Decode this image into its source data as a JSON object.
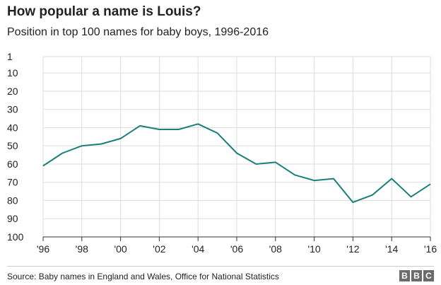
{
  "header": {
    "title": "How popular a name is Louis?",
    "subtitle": "Position in top 100 names for baby boys, 1996-2016"
  },
  "footer": {
    "source": "Source: Baby names in England and Wales, Office for National Statistics",
    "logo_letters": [
      "B",
      "B",
      "C"
    ]
  },
  "colors": {
    "line": "#1a7f7a",
    "grid": "#dddddd",
    "axis": "#333333"
  },
  "chart_data": {
    "type": "line",
    "title": "How popular a name is Louis?",
    "subtitle": "Position in top 100 names for baby boys, 1996-2016",
    "xlabel": "",
    "ylabel": "",
    "x": [
      1996,
      1997,
      1998,
      1999,
      2000,
      2001,
      2002,
      2003,
      2004,
      2005,
      2006,
      2007,
      2008,
      2009,
      2010,
      2011,
      2012,
      2013,
      2014,
      2015,
      2016
    ],
    "y": [
      61,
      54,
      50,
      49,
      46,
      39,
      41,
      41,
      38,
      43,
      54,
      60,
      59,
      66,
      69,
      68,
      81,
      77,
      68,
      78,
      71
    ],
    "xlim": [
      1996,
      2016
    ],
    "ylim": [
      1,
      100
    ],
    "y_reversed": true,
    "x_ticks": [
      1996,
      1998,
      2000,
      2002,
      2004,
      2006,
      2008,
      2010,
      2012,
      2014,
      2016
    ],
    "x_tick_labels": [
      "'96",
      "'98",
      "'00",
      "'02",
      "'04",
      "'06",
      "'08",
      "'10",
      "'12",
      "'14",
      "'16"
    ],
    "y_ticks": [
      1,
      10,
      20,
      30,
      40,
      50,
      60,
      70,
      80,
      90,
      100
    ],
    "y_tick_labels": [
      "1",
      "10",
      "20",
      "30",
      "40",
      "50",
      "60",
      "70",
      "80",
      "90",
      "100"
    ],
    "grid": true
  }
}
